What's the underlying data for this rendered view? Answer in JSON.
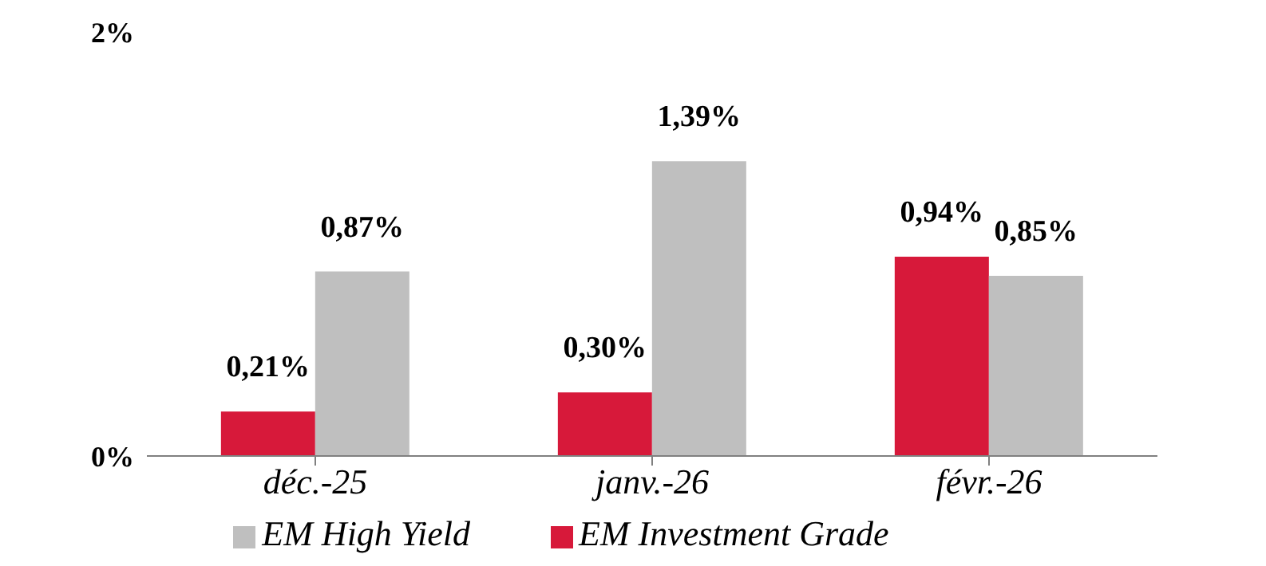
{
  "chart_data": {
    "type": "bar",
    "categories": [
      "déc.-25",
      "janv.-26",
      "févr.-26"
    ],
    "series": [
      {
        "name": "EM Investment Grade",
        "color": "#d7193a",
        "values": [
          0.21,
          0.3,
          0.94
        ],
        "value_labels": [
          "0,21%",
          "0,30%",
          "0,94%"
        ]
      },
      {
        "name": "EM High Yield",
        "color": "#bfbfbf",
        "values": [
          0.87,
          1.39,
          0.85
        ],
        "value_labels": [
          "0,87%",
          "1,39%",
          "0,85%"
        ]
      }
    ],
    "ylim": [
      0,
      2
    ],
    "yticks": [
      {
        "value": 0,
        "label": "0%"
      },
      {
        "value": 2,
        "label": "2%"
      }
    ],
    "grid": false,
    "legend": "bottom"
  }
}
